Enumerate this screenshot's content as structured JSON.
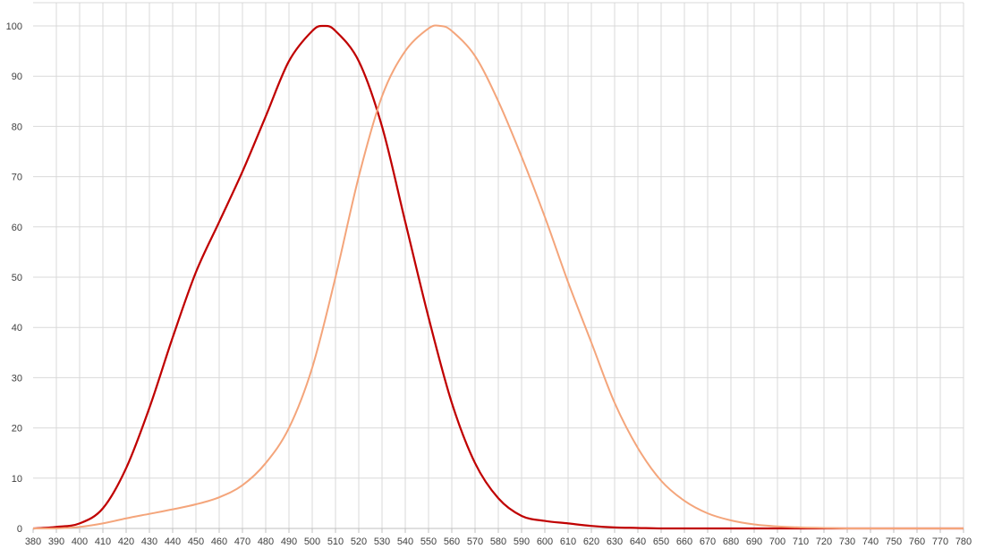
{
  "chart_data": {
    "type": "line",
    "title": "",
    "xlabel": "",
    "ylabel": "",
    "xlim": [
      380,
      780
    ],
    "ylim": [
      0,
      100
    ],
    "x_ticks": [
      380,
      390,
      400,
      410,
      420,
      430,
      440,
      450,
      460,
      470,
      480,
      490,
      500,
      510,
      520,
      530,
      540,
      550,
      560,
      570,
      580,
      590,
      600,
      610,
      620,
      630,
      640,
      650,
      660,
      670,
      680,
      690,
      700,
      710,
      720,
      730,
      740,
      750,
      760,
      770,
      780
    ],
    "y_ticks": [
      0,
      10,
      20,
      30,
      40,
      50,
      60,
      70,
      80,
      90,
      100
    ],
    "grid": true,
    "legend": "none",
    "series": [
      {
        "color": "#c00000",
        "x": [
          380,
          390,
          400,
          410,
          420,
          430,
          440,
          450,
          460,
          470,
          480,
          490,
          500,
          505,
          510,
          520,
          530,
          540,
          550,
          560,
          570,
          580,
          590,
          600,
          610,
          620,
          630,
          640,
          650,
          660,
          670,
          680,
          690,
          700,
          710,
          720,
          730,
          740,
          750,
          760,
          770,
          780
        ],
        "values": [
          0,
          0.3,
          1,
          4,
          12,
          24,
          38,
          51,
          61,
          71,
          82,
          93,
          99,
          100,
          99,
          93,
          80,
          61,
          42,
          25,
          13,
          6,
          2.5,
          1.5,
          1,
          0.5,
          0.2,
          0.1,
          0,
          0,
          0,
          0,
          0,
          0,
          0,
          0,
          0,
          0,
          0,
          0,
          0,
          0
        ]
      },
      {
        "color": "#f4a57b",
        "x": [
          380,
          390,
          400,
          410,
          420,
          430,
          440,
          450,
          460,
          470,
          480,
          490,
          500,
          510,
          520,
          530,
          540,
          550,
          555,
          560,
          570,
          580,
          590,
          600,
          610,
          620,
          630,
          640,
          650,
          660,
          670,
          680,
          690,
          700,
          710,
          720,
          730,
          740,
          750,
          760,
          770,
          780
        ],
        "values": [
          0,
          0,
          0.3,
          1,
          2,
          2.9,
          3.8,
          4.8,
          6.2,
          8.6,
          13,
          20,
          32,
          50,
          70,
          86,
          95,
          99.5,
          100,
          99,
          94,
          85,
          74,
          62,
          49,
          37,
          25,
          16,
          9.5,
          5.5,
          3,
          1.6,
          0.8,
          0.4,
          0.2,
          0.1,
          0,
          0,
          0,
          0,
          0,
          0
        ]
      }
    ]
  }
}
